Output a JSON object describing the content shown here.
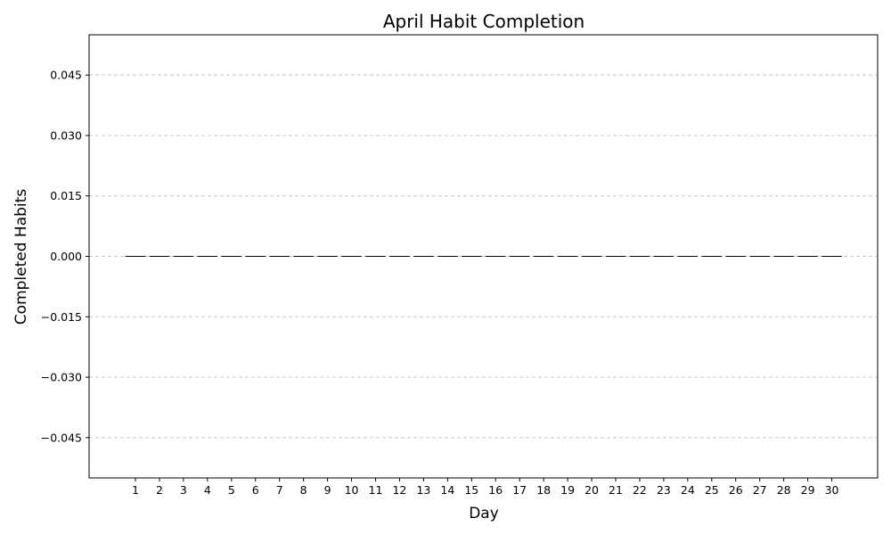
{
  "chart_data": {
    "type": "bar",
    "title": "April Habit Completion",
    "xlabel": "Day",
    "ylabel": "Completed Habits",
    "categories": [
      "1",
      "2",
      "3",
      "4",
      "5",
      "6",
      "7",
      "8",
      "9",
      "10",
      "11",
      "12",
      "13",
      "14",
      "15",
      "16",
      "17",
      "18",
      "19",
      "20",
      "21",
      "22",
      "23",
      "24",
      "25",
      "26",
      "27",
      "28",
      "29",
      "30"
    ],
    "values": [
      0,
      0,
      0,
      0,
      0,
      0,
      0,
      0,
      0,
      0,
      0,
      0,
      0,
      0,
      0,
      0,
      0,
      0,
      0,
      0,
      0,
      0,
      0,
      0,
      0,
      0,
      0,
      0,
      0,
      0
    ],
    "ylim": [
      -0.055,
      0.055
    ],
    "yticks": [
      -0.045,
      -0.03,
      -0.015,
      0.0,
      0.015,
      0.03,
      0.045
    ],
    "ytick_labels": [
      "−0.045",
      "−0.030",
      "−0.015",
      "0.000",
      "0.015",
      "0.030",
      "0.045"
    ],
    "grid": "y-dashed",
    "legend": "none",
    "colors": {
      "bar_edge": "#000000",
      "grid": "#c8c8c8",
      "axes": "#000000"
    }
  }
}
